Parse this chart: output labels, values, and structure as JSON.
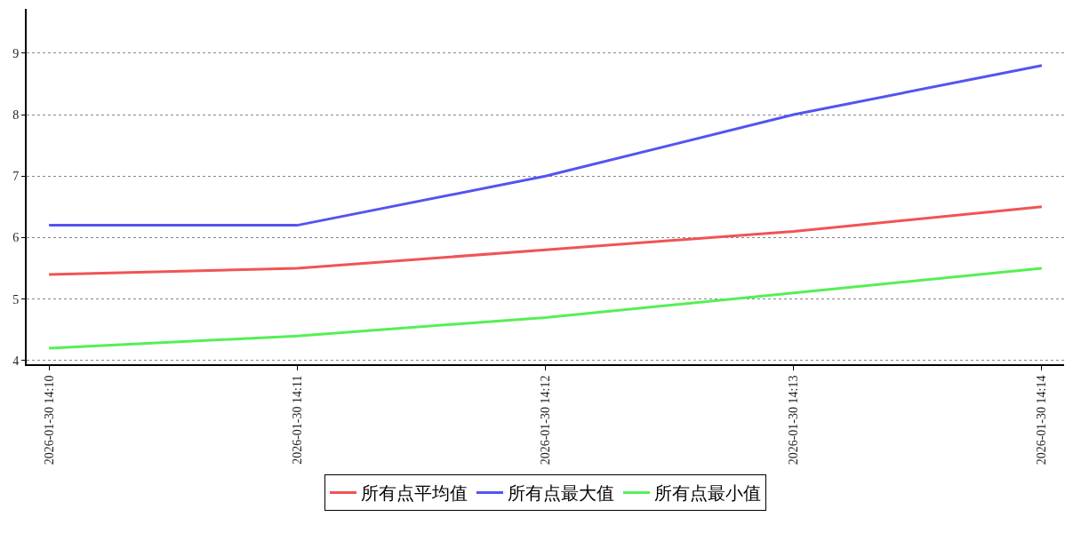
{
  "chart_data": {
    "type": "line",
    "categories": [
      "2026-01-30 14:10",
      "2026-01-30 14:11",
      "2026-01-30 14:12",
      "2026-01-30 14:13",
      "2026-01-30 14:14"
    ],
    "series": [
      {
        "name": "所有点平均值",
        "color": "#f05454",
        "values": [
          5.4,
          5.5,
          5.8,
          6.1,
          6.5
        ]
      },
      {
        "name": "所有点最大值",
        "color": "#5454f0",
        "values": [
          6.2,
          6.2,
          7.0,
          8.0,
          8.8
        ]
      },
      {
        "name": "所有点最小值",
        "color": "#54f054",
        "values": [
          4.2,
          4.4,
          4.7,
          5.1,
          5.5
        ]
      }
    ],
    "ylim": [
      3.94,
      9.72
    ],
    "yticks": [
      4,
      5,
      6,
      7,
      8,
      9
    ],
    "grid": "y",
    "legend": "bottom",
    "marker": "none",
    "line_style": "solid"
  }
}
